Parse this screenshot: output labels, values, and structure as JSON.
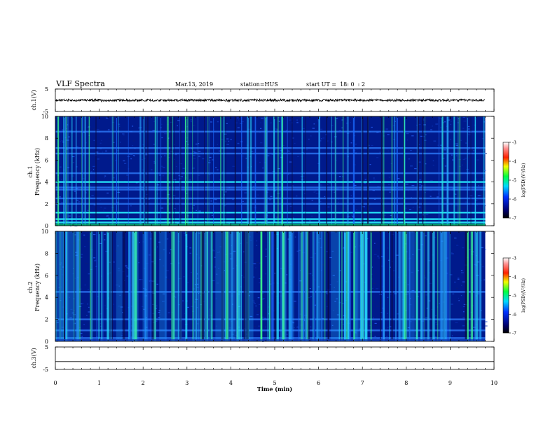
{
  "header": {
    "title": "VLF Spectra",
    "date": "Mar.13, 2019",
    "station": "station=HUS",
    "start_ut": "start UT =  18: 0  : 2"
  },
  "chart_data": [
    {
      "type": "line",
      "panel": "ch1-waveform",
      "ylabel": "ch.1(V)",
      "ylim": [
        -5,
        5
      ],
      "y_ticks": [
        "5",
        "-5"
      ],
      "xlim": [
        0,
        10
      ],
      "note_series": "noisy signal centered near 0 V, amplitude about ±0.5 V, from 0 to ~9.8 min"
    },
    {
      "type": "heatmap",
      "panel": "ch1-spectrogram",
      "ylabel": "ch.1\nFrequency (kHz)",
      "ylim": [
        0,
        10
      ],
      "y_ticks": [
        "0",
        "2",
        "4",
        "6",
        "8",
        "10"
      ],
      "xlim": [
        0,
        10
      ],
      "data_end_min": 9.8,
      "colorbar": {
        "label": "log(PSD)(V²/Hz)",
        "range": [
          -7,
          -3
        ],
        "ticks": [
          "-3",
          "-4",
          "-5",
          "-6",
          "-7"
        ]
      },
      "bands_khz": [
        0.3,
        0.6,
        1.2,
        2.0,
        2.5,
        3.3,
        3.5,
        4.0,
        4.8,
        6.6,
        7.1,
        8.6
      ],
      "colors": {
        "background": "#001a8c",
        "band": "#2f7fff",
        "strong": "#28f0ff"
      }
    },
    {
      "type": "heatmap",
      "panel": "ch2-spectrogram",
      "ylabel": "ch.2\nFrequency (kHz)",
      "ylim": [
        0,
        10
      ],
      "y_ticks": [
        "0",
        "2",
        "4",
        "6",
        "8",
        "10"
      ],
      "xlim": [
        0,
        10
      ],
      "data_end_min": 9.8,
      "colorbar": {
        "label": "log(PSD)(V²/Hz)",
        "range": [
          -7,
          -3
        ],
        "ticks": [
          "-3",
          "-4",
          "-5",
          "-6",
          "-7"
        ]
      },
      "bands_khz": [
        0.3,
        1.0,
        2.0,
        4.5
      ],
      "colors": {
        "background": "#001a8c",
        "band": "#2f7fff",
        "strong": "#28f0ff"
      }
    },
    {
      "type": "line",
      "panel": "ch3-waveform",
      "ylabel": "ch.3(V)",
      "ylim": [
        -5,
        5
      ],
      "y_ticks": [
        "5",
        "-5"
      ],
      "xlim": [
        0,
        10
      ],
      "series_value_v": -1.5
    }
  ],
  "x_axis": {
    "label": "Time (min)",
    "ticks": [
      "0",
      "1",
      "2",
      "3",
      "4",
      "5",
      "6",
      "7",
      "8",
      "9",
      "10"
    ]
  }
}
